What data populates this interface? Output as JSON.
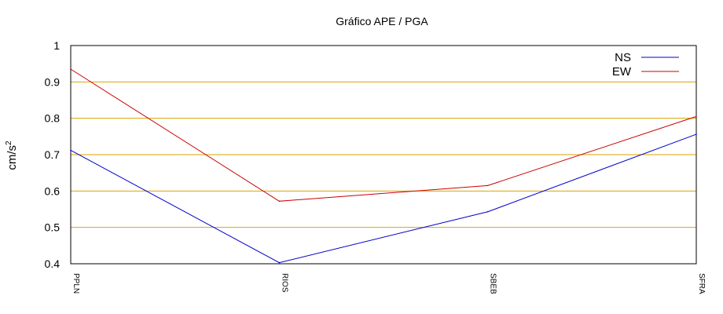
{
  "chart_data": {
    "type": "line",
    "title": "Gráfico  APE / PGA",
    "xlabel": "",
    "ylabel": "cm/s",
    "ylabel_superscript": "2",
    "ylim": [
      0.4,
      1.0
    ],
    "yticks": [
      "0.4",
      "0.5",
      "0.6",
      "0.7",
      "0.8",
      "0.9",
      "1"
    ],
    "categories": [
      "PPLN",
      "RIOS",
      "SBEB",
      "SFRA"
    ],
    "series": [
      {
        "name": "NS",
        "color": "#0000cc",
        "values": [
          0.712,
          0.403,
          0.543,
          0.756
        ]
      },
      {
        "name": "EW",
        "color": "#cc0000",
        "values": [
          0.935,
          0.572,
          0.615,
          0.805
        ]
      }
    ],
    "grid": {
      "y": true,
      "x": false,
      "color": "#d9a400"
    },
    "legend": "top-right"
  }
}
